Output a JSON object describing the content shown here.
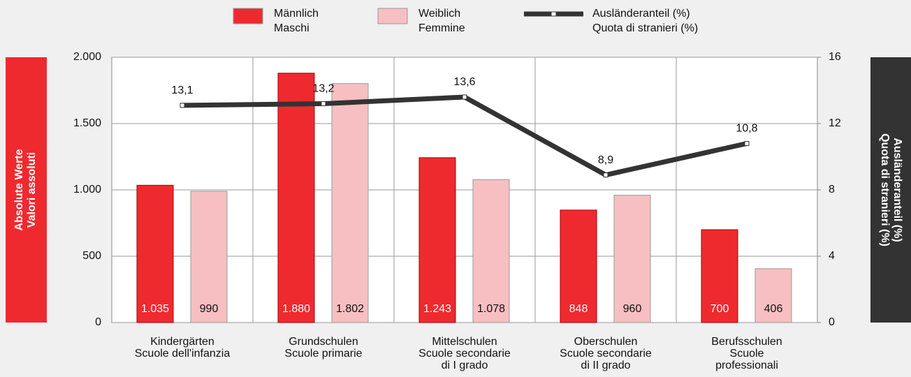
{
  "chart_data": {
    "type": "bar",
    "categories": [
      [
        "Kindergärten",
        "Scuole dell'infanzia"
      ],
      [
        "Grundschulen",
        "Scuole primarie"
      ],
      [
        "Mittelschulen",
        "Scuole secondarie",
        "di I grado"
      ],
      [
        "Oberschulen",
        "Scuole secondarie",
        "di II grado"
      ],
      [
        "Berufsschulen",
        "Scuole",
        "professionali"
      ]
    ],
    "series": [
      {
        "name": [
          "Männlich",
          "Maschi"
        ],
        "color": "#ee2a2f",
        "values": [
          1035,
          1880,
          1243,
          848,
          700
        ],
        "value_labels": [
          "1.035",
          "1.880",
          "1.243",
          "848",
          "700"
        ]
      },
      {
        "name": [
          "Weiblich",
          "Femmine"
        ],
        "color": "#f7bfc1",
        "values": [
          990,
          1802,
          1078,
          960,
          406
        ],
        "value_labels": [
          "990",
          "1.802",
          "1.078",
          "960",
          "406"
        ]
      },
      {
        "name": [
          "Ausländeranteil (%)",
          "Quota di stranieri (%)"
        ],
        "type": "line",
        "axis": "y2",
        "color": "#333333",
        "values": [
          13.1,
          13.2,
          13.6,
          8.9,
          10.8
        ],
        "value_labels": [
          "13,1",
          "13,2",
          "13,6",
          "8,9",
          "10,8"
        ]
      }
    ],
    "ylabel": [
      "Absolute Werte",
      "Valori assoluti"
    ],
    "y2label": [
      "Ausländeranteil (%)",
      "Quota di stranieri (%)"
    ],
    "ylim": [
      0,
      2000
    ],
    "yticks": [
      0,
      500,
      {
        "value": 1000,
        "label": "1.000"
      },
      {
        "value": 1500,
        "label": "1.500"
      },
      {
        "value": 2000,
        "label": "2.000"
      }
    ],
    "y2lim": [
      0,
      16
    ],
    "y2ticks": [
      0,
      4,
      8,
      12,
      16
    ],
    "grid": true
  }
}
